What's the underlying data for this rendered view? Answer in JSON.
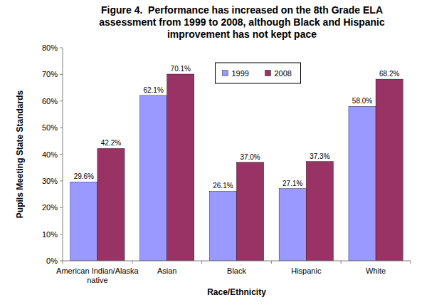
{
  "chart_data": {
    "type": "bar",
    "title": "Figure 4.  Performance has increased on the 8th Grade ELA assessment from 1999 to 2008, although Black and Hispanic improvement has not kept pace",
    "x_label": "Race/Ethnicity",
    "y_label": "Pupils Meeting State Standards",
    "categories": [
      "American Indian/Alaska native",
      "Asian",
      "Black",
      "Hispanic",
      "White"
    ],
    "series": [
      {
        "name": "1999",
        "color": "#9999ff",
        "values": [
          29.6,
          62.1,
          26.1,
          27.1,
          58.0
        ],
        "value_labels": [
          "29.6%",
          "62.1%",
          "26.1%",
          "27.1%",
          "58.0%"
        ]
      },
      {
        "name": "2008",
        "color": "#993366",
        "values": [
          42.2,
          70.1,
          37.0,
          37.3,
          68.2
        ],
        "value_labels": [
          "42.2%",
          "70.1%",
          "37.0%",
          "37.3%",
          "68.2%"
        ]
      }
    ],
    "ylim": [
      0,
      80
    ],
    "yticks": [
      {
        "value": 0,
        "label": "0%"
      },
      {
        "value": 10,
        "label": "10%"
      },
      {
        "value": 20,
        "label": "20%"
      },
      {
        "value": 30,
        "label": "30%"
      },
      {
        "value": 40,
        "label": "40%"
      },
      {
        "value": 50,
        "label": "50%"
      },
      {
        "value": 60,
        "label": "60%"
      },
      {
        "value": 70,
        "label": "70%"
      },
      {
        "value": 80,
        "label": "80%"
      }
    ],
    "grid": false,
    "legend": "top",
    "data_labels": true
  }
}
